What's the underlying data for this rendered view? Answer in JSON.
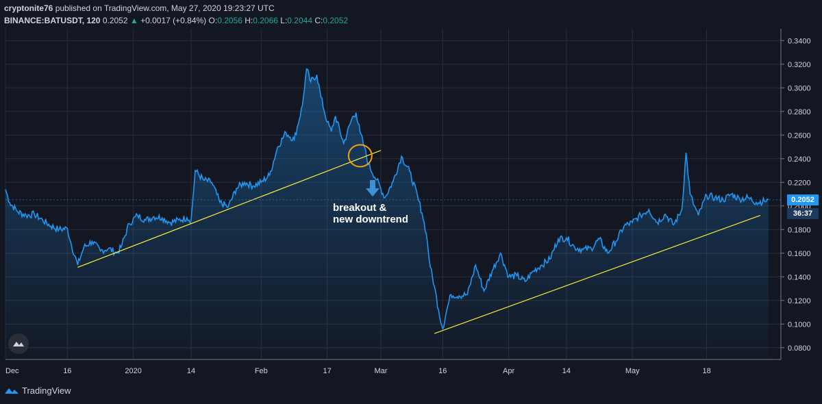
{
  "header": {
    "author": "cryptonite76",
    "published": "published on TradingView.com, May 27, 2020 19:23:27 UTC",
    "symbol": "BINANCE:BATUSDT, 120",
    "last": "0.2052",
    "change_arrow": "▲",
    "change": "+0.0017 (+0.84%)",
    "o_label": "O:",
    "o_value": "0.2056",
    "h_label": "H:",
    "h_value": "0.2066",
    "l_label": "L:",
    "l_value": "0.2044",
    "c_label": "C:",
    "c_value": "0.2052"
  },
  "annotation": {
    "line1": "breakout &",
    "line2": "new downtrend"
  },
  "price_tag": {
    "price": "0.2052",
    "countdown": "36:37"
  },
  "footer": {
    "brand": "TradingView"
  },
  "icons": {
    "badge": "tradingview-logo-icon",
    "footer_logo": "tradingview-logo-icon",
    "arrow": "down-arrow-icon"
  },
  "colors": {
    "background": "#131722",
    "grid": "#2a2e39",
    "line": "#2196f3",
    "trendline": "#ffeb3b",
    "circle": "#f0a30a",
    "axis_text": "#d1d4dc",
    "green": "#26a69a"
  },
  "chart_data": {
    "type": "area",
    "title": "",
    "xlabel": "",
    "ylabel": "",
    "x_tick_labels": [
      "Dec",
      "16",
      "2020",
      "14",
      "Feb",
      "17",
      "Mar",
      "16",
      "Apr",
      "14",
      "May",
      "18"
    ],
    "x_tick_days": [
      0,
      15,
      31,
      45,
      62,
      78,
      91,
      106,
      122,
      136,
      152,
      170
    ],
    "y_ticks": [
      0.08,
      0.1,
      0.12,
      0.14,
      0.16,
      0.18,
      0.2,
      0.22,
      0.24,
      0.26,
      0.28,
      0.3,
      0.32,
      0.34
    ],
    "y_tick_labels": [
      "0.0800",
      "0.1000",
      "0.1200",
      "0.1400",
      "0.1600",
      "0.1800",
      "0.2000",
      "0.2200",
      "0.2400",
      "0.2600",
      "0.2800",
      "0.3000",
      "0.3200",
      "0.3400"
    ],
    "ylim": [
      0.07,
      0.35
    ],
    "xlim_days": [
      0,
      188
    ],
    "grid": true,
    "series": [
      {
        "x_days": [
          0,
          1,
          3,
          5,
          7,
          9,
          11,
          13,
          15,
          16,
          17.5,
          19,
          21,
          23,
          25,
          27,
          28,
          30,
          32,
          34,
          36,
          38,
          40,
          42,
          44,
          45,
          46,
          48,
          50,
          52,
          54,
          56,
          58,
          60,
          62,
          64,
          66,
          68,
          70,
          72,
          73,
          74,
          75.5,
          76.5,
          78,
          79,
          80,
          82,
          84,
          85,
          86,
          87,
          88,
          90,
          92,
          94,
          96,
          98,
          100,
          101,
          102,
          103,
          104,
          105,
          106,
          107,
          108,
          110,
          112,
          114,
          116,
          118,
          120,
          122,
          124,
          126,
          128,
          130,
          132,
          134,
          136,
          138,
          140,
          142,
          144,
          146,
          148,
          150,
          152,
          154,
          156,
          158,
          160,
          162,
          164,
          165,
          166,
          167,
          168,
          170,
          172,
          174,
          176,
          178,
          180,
          182,
          184,
          185
        ],
        "values": [
          0.214,
          0.203,
          0.195,
          0.192,
          0.193,
          0.188,
          0.183,
          0.18,
          0.181,
          0.167,
          0.15,
          0.165,
          0.17,
          0.162,
          0.164,
          0.16,
          0.165,
          0.185,
          0.192,
          0.188,
          0.191,
          0.19,
          0.186,
          0.188,
          0.19,
          0.188,
          0.23,
          0.222,
          0.22,
          0.203,
          0.199,
          0.215,
          0.22,
          0.217,
          0.22,
          0.226,
          0.25,
          0.262,
          0.256,
          0.285,
          0.316,
          0.305,
          0.311,
          0.292,
          0.271,
          0.263,
          0.276,
          0.253,
          0.274,
          0.279,
          0.262,
          0.25,
          0.235,
          0.222,
          0.207,
          0.221,
          0.242,
          0.229,
          0.207,
          0.194,
          0.177,
          0.148,
          0.132,
          0.112,
          0.096,
          0.112,
          0.125,
          0.124,
          0.125,
          0.15,
          0.128,
          0.145,
          0.16,
          0.14,
          0.141,
          0.136,
          0.145,
          0.15,
          0.155,
          0.172,
          0.173,
          0.165,
          0.163,
          0.164,
          0.172,
          0.16,
          0.17,
          0.183,
          0.186,
          0.192,
          0.197,
          0.186,
          0.193,
          0.184,
          0.197,
          0.245,
          0.21,
          0.2,
          0.192,
          0.209,
          0.207,
          0.205,
          0.21,
          0.206,
          0.207,
          0.203,
          0.204,
          0.2052
        ]
      }
    ],
    "trendlines": [
      {
        "x_days": [
          17.5,
          91
        ],
        "values": [
          0.148,
          0.247
        ]
      },
      {
        "x_days": [
          104,
          183
        ],
        "values": [
          0.092,
          0.192
        ]
      }
    ],
    "highlight_circle": {
      "x_day": 86,
      "value": 0.2425
    },
    "last_value": 0.2052
  }
}
